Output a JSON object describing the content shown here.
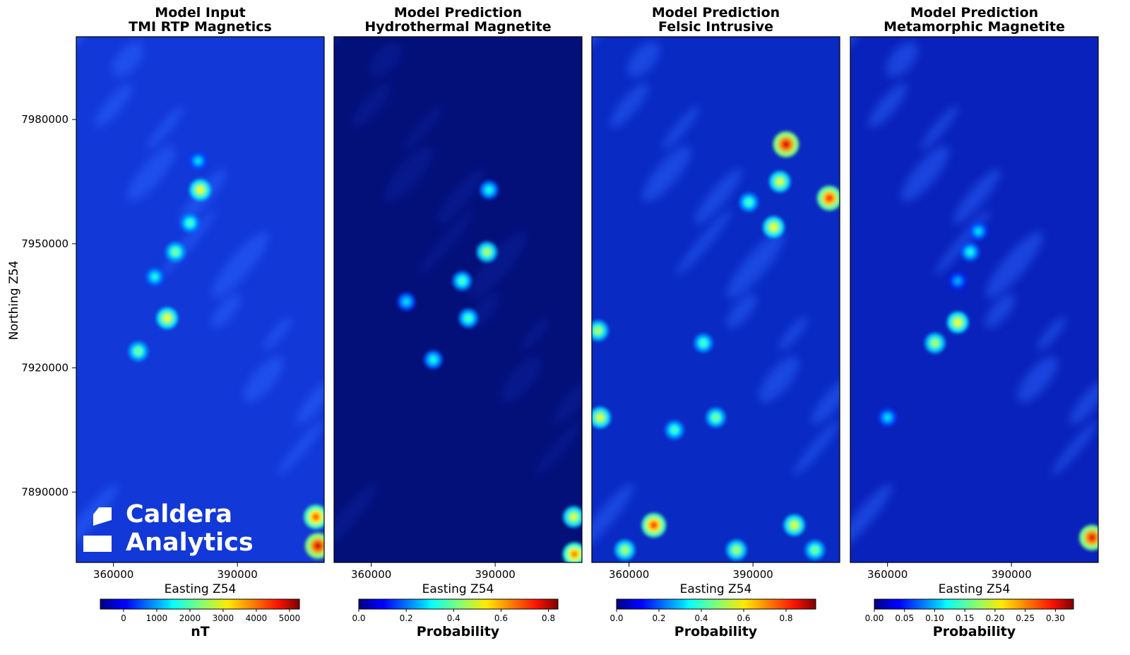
{
  "chart_data": {
    "type": "heatmap",
    "ylabel": "Northing Z54",
    "yticks": [
      7980000,
      7950000,
      7920000,
      7890000
    ],
    "ylim": [
      7873000,
      8000000
    ],
    "xlim": [
      351000,
      411000
    ],
    "xticks": [
      360000,
      390000
    ],
    "panels": [
      {
        "title_line1": "Model Input",
        "title_line2": "TMI RTP Magnetics",
        "xlabel": "Easting Z54",
        "colorbar_label": "nT",
        "colorbar_range": [
          -700,
          5300
        ],
        "colorbar_ticks": [
          "0",
          "1000",
          "2000",
          "3000",
          "4000",
          "5000"
        ],
        "colorbar_tick_values": [
          0,
          1000,
          2000,
          3000,
          4000,
          5000
        ],
        "hotspots": [
          {
            "x": 381000,
            "y": 7963000,
            "v": 0.62
          },
          {
            "x": 378500,
            "y": 7955000,
            "v": 0.45
          },
          {
            "x": 373000,
            "y": 7932000,
            "v": 0.62
          },
          {
            "x": 375000,
            "y": 7948000,
            "v": 0.5
          },
          {
            "x": 366000,
            "y": 7924000,
            "v": 0.5
          },
          {
            "x": 370000,
            "y": 7942000,
            "v": 0.4
          },
          {
            "x": 380500,
            "y": 7970000,
            "v": 0.35
          },
          {
            "x": 409000,
            "y": 7884000,
            "v": 0.8
          },
          {
            "x": 409500,
            "y": 7877000,
            "v": 0.92
          }
        ]
      },
      {
        "title_line1": "Model Prediction",
        "title_line2": "Hydrothermal Magnetite",
        "xlabel": "Easting Z54",
        "colorbar_label": "Probability",
        "colorbar_range": [
          0.0,
          0.84
        ],
        "colorbar_ticks": [
          "0.0",
          "0.2",
          "0.4",
          "0.6",
          "0.8"
        ],
        "colorbar_tick_values": [
          0.0,
          0.2,
          0.4,
          0.6,
          0.8
        ],
        "hotspots": [
          {
            "x": 388500,
            "y": 7963000,
            "v": 0.4
          },
          {
            "x": 388000,
            "y": 7948000,
            "v": 0.55
          },
          {
            "x": 382000,
            "y": 7941000,
            "v": 0.45
          },
          {
            "x": 383500,
            "y": 7932000,
            "v": 0.45
          },
          {
            "x": 375000,
            "y": 7922000,
            "v": 0.4
          },
          {
            "x": 368500,
            "y": 7936000,
            "v": 0.35
          },
          {
            "x": 409000,
            "y": 7884000,
            "v": 0.6
          },
          {
            "x": 409200,
            "y": 7875000,
            "v": 0.75
          }
        ]
      },
      {
        "title_line1": "Model Prediction",
        "title_line2": "Felsic Intrusive",
        "xlabel": "Easting Z54",
        "colorbar_label": "Probability",
        "colorbar_range": [
          0.0,
          0.94
        ],
        "colorbar_ticks": [
          "0.0",
          "0.2",
          "0.4",
          "0.6",
          "0.8"
        ],
        "colorbar_tick_values": [
          0.0,
          0.2,
          0.4,
          0.6,
          0.8
        ],
        "hotspots": [
          {
            "x": 398000,
            "y": 7974000,
            "v": 0.92
          },
          {
            "x": 408500,
            "y": 7961000,
            "v": 0.85
          },
          {
            "x": 396500,
            "y": 7965000,
            "v": 0.6
          },
          {
            "x": 395000,
            "y": 7954000,
            "v": 0.62
          },
          {
            "x": 389000,
            "y": 7960000,
            "v": 0.45
          },
          {
            "x": 366000,
            "y": 7882000,
            "v": 0.82
          },
          {
            "x": 352500,
            "y": 7929000,
            "v": 0.55
          },
          {
            "x": 353000,
            "y": 7908000,
            "v": 0.6
          },
          {
            "x": 381000,
            "y": 7908000,
            "v": 0.5
          },
          {
            "x": 371000,
            "y": 7905000,
            "v": 0.45
          },
          {
            "x": 378000,
            "y": 7926000,
            "v": 0.45
          },
          {
            "x": 400000,
            "y": 7882000,
            "v": 0.6
          },
          {
            "x": 405000,
            "y": 7876000,
            "v": 0.5
          },
          {
            "x": 359000,
            "y": 7876000,
            "v": 0.55
          },
          {
            "x": 386000,
            "y": 7876000,
            "v": 0.55
          }
        ]
      },
      {
        "title_line1": "Model Prediction",
        "title_line2": "Metamorphic Magnetite",
        "xlabel": "Easting Z54",
        "colorbar_label": "Probability",
        "colorbar_range": [
          0.0,
          0.33
        ],
        "colorbar_ticks": [
          "0.00",
          "0.05",
          "0.10",
          "0.15",
          "0.20",
          "0.25",
          "0.30"
        ],
        "colorbar_tick_values": [
          0.0,
          0.05,
          0.1,
          0.15,
          0.2,
          0.25,
          0.3
        ],
        "hotspots": [
          {
            "x": 377000,
            "y": 7931000,
            "v": 0.62
          },
          {
            "x": 371500,
            "y": 7926000,
            "v": 0.55
          },
          {
            "x": 380000,
            "y": 7948000,
            "v": 0.4
          },
          {
            "x": 382000,
            "y": 7953000,
            "v": 0.35
          },
          {
            "x": 377000,
            "y": 7941000,
            "v": 0.3
          },
          {
            "x": 360000,
            "y": 7908000,
            "v": 0.35
          },
          {
            "x": 409500,
            "y": 7879000,
            "v": 0.9
          }
        ]
      }
    ]
  },
  "logo": {
    "line1": "Caldera",
    "line2": "Analytics"
  }
}
